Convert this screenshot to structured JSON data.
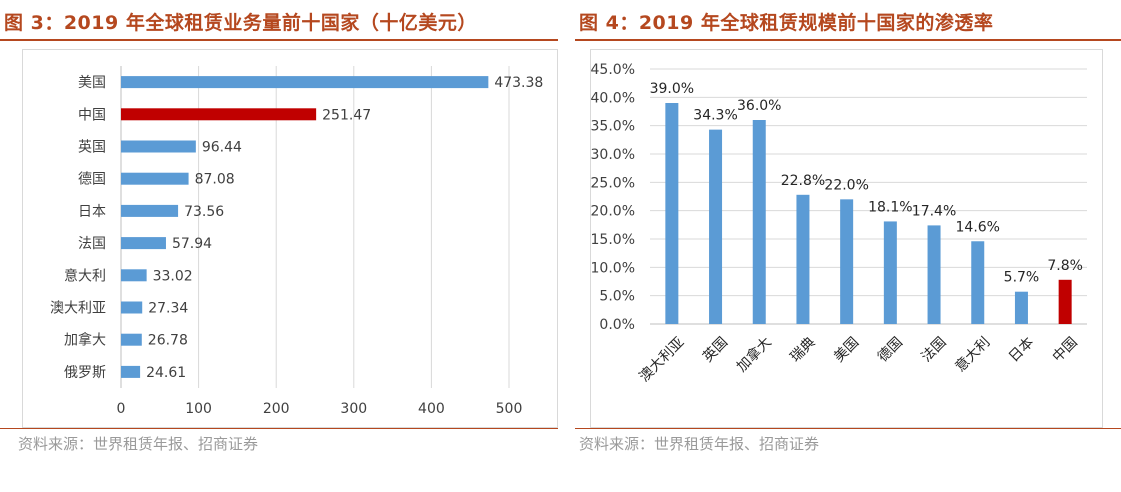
{
  "left": {
    "title": "图 3：2019 年全球租赁业务量前十国家（十亿美元）",
    "source": "资料来源：世界租赁年报、招商证券"
  },
  "right": {
    "title": "图 4：2019 年全球租赁规模前十国家的渗透率",
    "source": "资料来源：世界租赁年报、招商证券"
  },
  "chart_data": [
    {
      "type": "bar",
      "orientation": "horizontal",
      "title": "图 3：2019 年全球租赁业务量前十国家（十亿美元）",
      "categories": [
        "美国",
        "中国",
        "英国",
        "德国",
        "日本",
        "法国",
        "意大利",
        "澳大利亚",
        "加拿大",
        "俄罗斯"
      ],
      "values": [
        473.38,
        251.47,
        96.44,
        87.08,
        73.56,
        57.94,
        33.02,
        27.34,
        26.78,
        24.61
      ],
      "value_labels": [
        "473.38",
        "251.47",
        "96.44",
        "87.08",
        "73.56",
        "57.94",
        "33.02",
        "27.34",
        "26.78",
        "24.61"
      ],
      "xlim": [
        0,
        500
      ],
      "xticks": [
        "0",
        "100",
        "200",
        "300",
        "400",
        "500"
      ],
      "xticks_values": [
        0,
        100,
        200,
        300,
        400,
        500
      ],
      "grid": true,
      "colors": {
        "default": "#5b9bd5",
        "highlight": "#c00000"
      },
      "highlight_category": "中国"
    },
    {
      "type": "bar",
      "orientation": "vertical",
      "title": "图 4：2019 年全球租赁规模前十国家的渗透率",
      "categories": [
        "澳大利亚",
        "英国",
        "加拿大",
        "瑞典",
        "美国",
        "德国",
        "法国",
        "意大利",
        "日本",
        "中国"
      ],
      "values": [
        39.0,
        34.3,
        36.0,
        22.8,
        22.0,
        18.1,
        17.4,
        14.6,
        5.7,
        7.8
      ],
      "value_labels": [
        "39.0%",
        "34.3%",
        "36.0%",
        "22.8%",
        "22.0%",
        "18.1%",
        "17.4%",
        "14.6%",
        "5.7%",
        "7.8%"
      ],
      "ylim": [
        0,
        45
      ],
      "yticks": [
        "0.0%",
        "5.0%",
        "10.0%",
        "15.0%",
        "20.0%",
        "25.0%",
        "30.0%",
        "35.0%",
        "40.0%",
        "45.0%"
      ],
      "yticks_values": [
        0,
        5,
        10,
        15,
        20,
        25,
        30,
        35,
        40,
        45
      ],
      "grid": true,
      "colors": {
        "default": "#5b9bd5",
        "highlight": "#c00000"
      },
      "highlight_category": "中国"
    }
  ]
}
